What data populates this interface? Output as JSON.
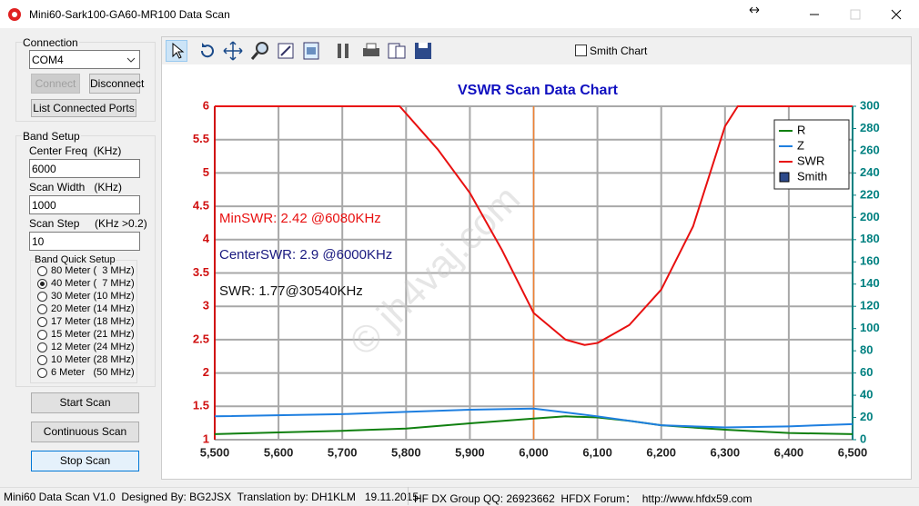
{
  "window": {
    "title": "Mini60-Sark100-GA60-MR100 Data Scan"
  },
  "sidebar": {
    "connection": {
      "label": "Connection",
      "port": "COM4",
      "buttons": [
        "Connect",
        "Disconnect",
        "List Connected Ports"
      ]
    },
    "band_setup": {
      "label": "Band Setup",
      "fields": [
        {
          "label": "Center Freq  (KHz)",
          "value": "6000"
        },
        {
          "label": "Scan Width   (KHz)",
          "value": "1000"
        },
        {
          "label": "Scan Step     (KHz >0.2)",
          "value": "10"
        }
      ],
      "quick_setup": {
        "label": "Band Quick Setup",
        "selected": 1,
        "options": [
          "80 Meter (  3 MHz)",
          "40 Meter (  7 MHz)",
          "30 Meter (10 MHz)",
          "20 Meter (14 MHz)",
          "17 Meter (18 MHz)",
          "15 Meter (21 MHz)",
          "12 Meter (24 MHz)",
          "10 Meter (28 MHz)",
          "6 Meter   (50 MHz)"
        ]
      }
    },
    "buttons": [
      "Start Scan",
      "Continuous Scan",
      "Stop Scan"
    ]
  },
  "toolbar": {
    "checkbox": "Smith Chart"
  },
  "chart_data": {
    "type": "line",
    "title": "VSWR Scan Data Chart",
    "xlim": [
      5500,
      6500
    ],
    "xticks": [
      {
        "value": 5500,
        "label": "5,500"
      },
      {
        "value": 5600,
        "label": "5,600"
      },
      {
        "value": 5700,
        "label": "5,700"
      },
      {
        "value": 5800,
        "label": "5,800"
      },
      {
        "value": 5900,
        "label": "5,900"
      },
      {
        "value": 6000,
        "label": "6,000"
      },
      {
        "value": 6100,
        "label": "6,100"
      },
      {
        "value": 6200,
        "label": "6,200"
      },
      {
        "value": 6300,
        "label": "6,300"
      },
      {
        "value": 6400,
        "label": "6,400"
      },
      {
        "value": 6500,
        "label": "6,500"
      }
    ],
    "ylim": [
      1,
      6
    ],
    "yticks": [
      1,
      1.5,
      2,
      2.5,
      3,
      3.5,
      4,
      4.5,
      5,
      5.5,
      6
    ],
    "y2lim": [
      0,
      300
    ],
    "y2ticks": [
      0,
      20,
      40,
      60,
      80,
      100,
      120,
      140,
      160,
      180,
      200,
      220,
      240,
      260,
      280,
      300
    ],
    "grid": true,
    "center_line": 6000,
    "series": [
      {
        "name": "R",
        "color": "#108010",
        "axis": "y2",
        "x": [
          5500,
          5600,
          5700,
          5800,
          5900,
          6000,
          6050,
          6100,
          6150,
          6200,
          6300,
          6400,
          6500
        ],
        "values": [
          5,
          6.5,
          8,
          10,
          14.7,
          19,
          21,
          20,
          17,
          13,
          9,
          6,
          5
        ]
      },
      {
        "name": "Z",
        "color": "#1e7fe0",
        "axis": "y2",
        "x": [
          5500,
          5700,
          5800,
          5900,
          6000,
          6100,
          6200,
          6300,
          6400,
          6500
        ],
        "values": [
          21,
          23,
          25,
          27,
          28,
          21,
          13,
          11,
          12,
          14
        ]
      },
      {
        "name": "SWR",
        "color": "#e81010",
        "x": [
          5500,
          5790,
          5850,
          5900,
          5950,
          6000,
          6050,
          6080,
          6100,
          6150,
          6200,
          6250,
          6300,
          6320,
          6500
        ],
        "values": [
          6,
          6,
          5.35,
          4.7,
          3.85,
          2.9,
          2.5,
          2.42,
          2.45,
          2.72,
          3.25,
          4.2,
          5.7,
          6,
          6
        ]
      }
    ],
    "legend": {
      "position": "upper right",
      "extra": [
        {
          "name": "Smith",
          "color": "#2d4a8a"
        }
      ]
    },
    "annotations": [
      {
        "text": "MinSWR: 2.42 @6080KHz",
        "color": "#e81010"
      },
      {
        "text": "CenterSWR: 2.9 @6000KHz",
        "color": "#1a1a80"
      },
      {
        "text": "SWR: 1.77@30540KHz",
        "color": "#111111"
      }
    ],
    "watermark": "© jh4vaj.com"
  },
  "status_bar": [
    "Mini60 Data Scan V1.0  Designed By: BG2JSX  Translation by: DH1KLM   19.11.2015",
    "HF DX Group QQ: 26923662  HFDX Forum：  http://www.hfdx59.com"
  ]
}
